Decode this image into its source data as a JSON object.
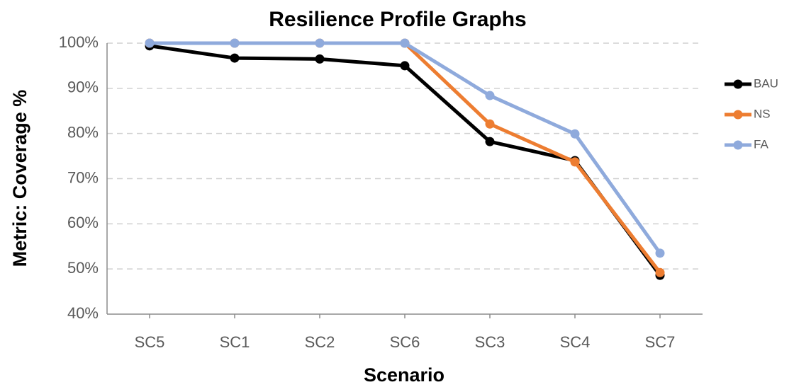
{
  "chart_data": {
    "type": "line",
    "title": "Resilience Profile Graphs",
    "x_label": "Scenario",
    "y_label": "Metric: Coverage %",
    "categories": [
      "SC5",
      "SC1",
      "SC2",
      "SC6",
      "SC3",
      "SC4",
      "SC7"
    ],
    "series": [
      {
        "name": "BAU",
        "color": "#000000",
        "values": [
          99.4,
          96.7,
          96.5,
          95.0,
          78.2,
          74.0,
          48.6
        ]
      },
      {
        "name": "NS",
        "color": "#ed7d31",
        "values": [
          100,
          100,
          100,
          100,
          82.1,
          73.7,
          49.2
        ]
      },
      {
        "name": "FA",
        "color": "#8faadc",
        "values": [
          100,
          100,
          100,
          100,
          88.4,
          79.9,
          53.5
        ]
      }
    ],
    "ylim": [
      40,
      100
    ],
    "yticks": [
      {
        "value": 40,
        "label": "40%"
      },
      {
        "value": 50,
        "label": "50%"
      },
      {
        "value": 60,
        "label": "60%"
      },
      {
        "value": 70,
        "label": "70%"
      },
      {
        "value": 80,
        "label": "80%"
      },
      {
        "value": 90,
        "label": "90%"
      },
      {
        "value": 100,
        "label": "100%"
      }
    ],
    "grid": true,
    "legend": "right"
  }
}
